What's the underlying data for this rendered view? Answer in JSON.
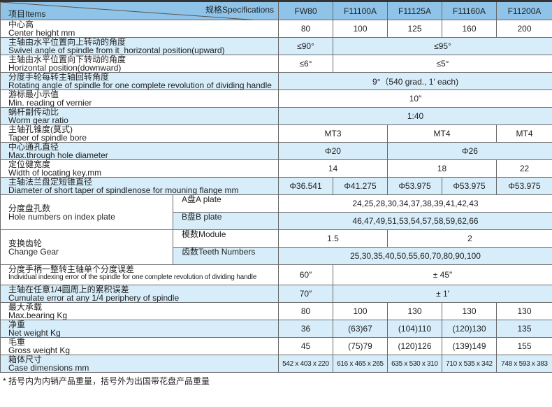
{
  "header": {
    "items_label": "项目Items",
    "spec_label": "规格Specifications",
    "models": [
      "FW80",
      "F11100A",
      "F11125A",
      "F11160A",
      "F11200A"
    ]
  },
  "colors": {
    "header_bg": "#8fc4e8",
    "stripe_bg": "#d7edf9",
    "border": "#6a6a6a"
  },
  "rows": [
    {
      "cn": "中心高",
      "en": "Center height mm",
      "bg": "w",
      "cells": [
        {
          "v": "80",
          "s": 1
        },
        {
          "v": "100",
          "s": 1
        },
        {
          "v": "125",
          "s": 1
        },
        {
          "v": "160",
          "s": 1
        },
        {
          "v": "200",
          "s": 1
        }
      ]
    },
    {
      "cn": "主轴由水平位置向上转动的角度",
      "en": "Swivel angle of spindle from it_horizontal position(upward)",
      "bg": "b",
      "cells": [
        {
          "v": "≤90°",
          "s": 1
        },
        {
          "v": "≤95°",
          "s": 4
        }
      ]
    },
    {
      "cn": "主轴由水平位置向下转动的角度",
      "en": "Horizontal position(downward)",
      "bg": "w",
      "cells": [
        {
          "v": "≤6°",
          "s": 1
        },
        {
          "v": "≤5°",
          "s": 4
        }
      ]
    },
    {
      "cn": "分度手轮每转主轴回转角度",
      "en": "Rotating angle of spindle for one complete revolution of dividing handle",
      "bg": "b",
      "cells": [
        {
          "v": "9°（540 grad., 1′ each)",
          "s": 5
        }
      ]
    },
    {
      "cn": "游标最小示值",
      "en": "Min. reading of vernier",
      "bg": "w",
      "cells": [
        {
          "v": "10″",
          "s": 5
        }
      ]
    },
    {
      "cn": "蜗杆副传动比",
      "en": "Worm gear ratio",
      "bg": "b",
      "cells": [
        {
          "v": "1:40",
          "s": 5
        }
      ]
    },
    {
      "cn": "主轴孔锥度(莫式)",
      "en": "Taper of spindle bore",
      "bg": "w",
      "cells": [
        {
          "v": "MT3",
          "s": 2
        },
        {
          "v": "MT4",
          "s": 2
        },
        {
          "v": "MT4",
          "s": 1
        }
      ]
    },
    {
      "cn": "中心通孔直径",
      "en": "Max.through hole diameter",
      "bg": "b",
      "cells": [
        {
          "v": "Φ20",
          "s": 2
        },
        {
          "v": "Φ26",
          "s": 3
        }
      ]
    },
    {
      "cn": "定位健宽度",
      "en": "Width of locating key.mm",
      "bg": "w",
      "cells": [
        {
          "v": "14",
          "s": 2
        },
        {
          "v": "18",
          "s": 2
        },
        {
          "v": "22",
          "s": 1
        }
      ]
    },
    {
      "cn": "主轴法兰盘定短锥直径",
      "en": "Diameter of short taper of spindlenose for mouning flange mm",
      "bg": "b",
      "cells": [
        {
          "v": "Φ36.541",
          "s": 1
        },
        {
          "v": "Φ41.275",
          "s": 1
        },
        {
          "v": "Φ53.975",
          "s": 1
        },
        {
          "v": "Φ53.975",
          "s": 1
        },
        {
          "v": "Φ53.975",
          "s": 1
        }
      ]
    },
    {
      "cn": "分度盘孔数",
      "en": "Hole numbers on index plate",
      "bg": "w",
      "group": true,
      "subs": [
        {
          "cn": "A盘",
          "en": "A plate",
          "bg": "w",
          "cells": [
            {
              "v": "24,25,28,30,34,37,38,39,41,42,43",
              "s": 5
            }
          ]
        },
        {
          "cn": "B盘",
          "en": "B plate",
          "bg": "b",
          "cells": [
            {
              "v": "46,47,49,51,53,54,57,58,59,62,66",
              "s": 5
            }
          ]
        }
      ]
    },
    {
      "cn": "变换齿轮",
      "en": "Change Gear",
      "bg": "w",
      "group": true,
      "subs": [
        {
          "cn": "模数",
          "en": "Module",
          "bg": "w",
          "cells": [
            {
              "v": "1.5",
              "s": 2
            },
            {
              "v": "2",
              "s": 3
            }
          ]
        },
        {
          "cn": "齿数",
          "en": "Teeth Numbers",
          "bg": "b",
          "cells": [
            {
              "v": "25,30,35,40,50,55,60,70,80,90,100",
              "s": 5
            }
          ]
        }
      ]
    },
    {
      "cn": "分度手柄一整转主轴单个分度误差",
      "en": "Individual indexing error of the spindle for one complete revolution of dividing handle",
      "bg": "w",
      "small": true,
      "cells": [
        {
          "v": "60″",
          "s": 1
        },
        {
          "v": "± 45″",
          "s": 4
        }
      ]
    },
    {
      "cn": "主轴在任意1/4圆周上的累积误差",
      "en": "Cumulate error at any 1/4 periphery of spindle",
      "bg": "b",
      "cells": [
        {
          "v": "70″",
          "s": 1
        },
        {
          "v": "± 1′",
          "s": 4
        }
      ]
    },
    {
      "cn": "最大承载",
      "en": "Max.bearing Kg",
      "bg": "w",
      "cells": [
        {
          "v": "80",
          "s": 1
        },
        {
          "v": "100",
          "s": 1
        },
        {
          "v": "130",
          "s": 1
        },
        {
          "v": "130",
          "s": 1
        },
        {
          "v": "130",
          "s": 1
        }
      ]
    },
    {
      "cn": "净重",
      "en": "Net weight Kg",
      "bg": "b",
      "cells": [
        {
          "v": "36",
          "s": 1
        },
        {
          "v": "(63)67",
          "s": 1
        },
        {
          "v": "(104)110",
          "s": 1
        },
        {
          "v": "(120)130",
          "s": 1
        },
        {
          "v": "135",
          "s": 1
        }
      ]
    },
    {
      "cn": "毛重",
      "en": "Gross weight Kg",
      "bg": "w",
      "cells": [
        {
          "v": "45",
          "s": 1
        },
        {
          "v": "(75)79",
          "s": 1
        },
        {
          "v": "(120)126",
          "s": 1
        },
        {
          "v": "(139)149",
          "s": 1
        },
        {
          "v": "155",
          "s": 1
        }
      ]
    },
    {
      "cn": "箱体尺寸",
      "en": "Case dimensions mm",
      "bg": "b",
      "tiny": true,
      "cells": [
        {
          "v": "542 x 403 x 220",
          "s": 1
        },
        {
          "v": "616 x 465 x 265",
          "s": 1
        },
        {
          "v": "635 x 530 x 310",
          "s": 1
        },
        {
          "v": "710 x 535 x 342",
          "s": 1
        },
        {
          "v": "748 x 593 x 383",
          "s": 1
        }
      ]
    }
  ],
  "footnote": "* 括号内为内销产品重量，括号外为出国带花盘产品重量"
}
